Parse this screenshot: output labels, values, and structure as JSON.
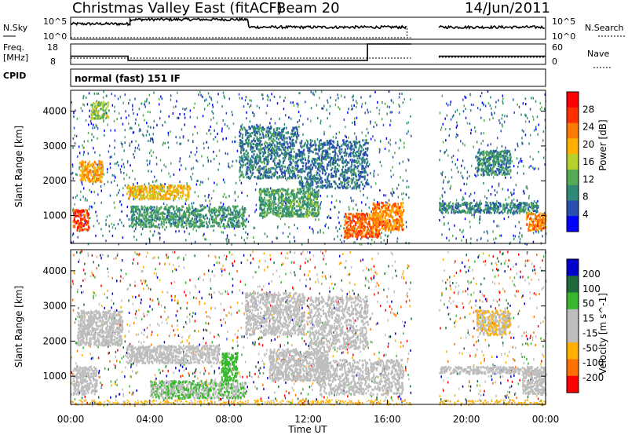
{
  "header": {
    "title": "Christmas Valley East (fitACF)",
    "beam": "Beam 20",
    "date": "14/Jun/2011"
  },
  "strips": {
    "nsky_label": "N.Sky",
    "nsky_ticks": [
      "10^5",
      "10^0"
    ],
    "nsearch_label": "N.Search",
    "nsearch_ticks": [
      "10^5",
      "10^0"
    ],
    "freq_label": "Freq.",
    "freq_unit": "[MHz]",
    "freq_ticks": [
      "18",
      "8"
    ],
    "nave_label": "Nave",
    "nave_ticks": [
      "60",
      "0"
    ],
    "cpid_label": "CPID",
    "cpid_value": "normal (fast) 151 IF"
  },
  "colors": {
    "power_scale": [
      "#0000ff",
      "#2a4fb0",
      "#2f8a78",
      "#55aa55",
      "#b8d02a",
      "#ffb000",
      "#ff7800",
      "#ff3000",
      "#ff0000"
    ],
    "velocity_scale": [
      "#0000cc",
      "#1f6a3a",
      "#37b82c",
      "#bdbdbd",
      "#bdbdbd",
      "#ffb000",
      "#ff7000",
      "#ff0000"
    ]
  },
  "chart_data": [
    {
      "type": "heatmap",
      "panel": "power",
      "ylabel": "Slant Range [km]",
      "xlabel": "",
      "y_ticks": [
        1000,
        2000,
        3000,
        4000
      ],
      "ylim": [
        200,
        4600
      ],
      "x_ticks": [
        "00:00",
        "04:00",
        "08:00",
        "12:00",
        "16:00",
        "20:00",
        "00:00"
      ],
      "xlim_hours": [
        0,
        24
      ],
      "colorbar_label": "Power [dB]",
      "colorbar_ticks": [
        "28",
        "24",
        "20",
        "16",
        "12",
        "8",
        "4"
      ],
      "colorbar_range": [
        0,
        30
      ],
      "data_gap_hours": [
        17.2,
        18.6
      ],
      "echo_regions": [
        {
          "t0": 0.1,
          "t1": 0.9,
          "r0": 600,
          "r1": 1200,
          "value": 26
        },
        {
          "t0": 0.4,
          "t1": 1.6,
          "r0": 2000,
          "r1": 2600,
          "value": 20
        },
        {
          "t0": 1.0,
          "t1": 1.9,
          "r0": 3800,
          "r1": 4300,
          "value": 14
        },
        {
          "t0": 2.8,
          "t1": 6.0,
          "r0": 1500,
          "r1": 1900,
          "value": 18
        },
        {
          "t0": 3.0,
          "t1": 8.8,
          "r0": 700,
          "r1": 1300,
          "value": 9
        },
        {
          "t0": 8.5,
          "t1": 11.5,
          "r0": 2100,
          "r1": 3600,
          "value": 7
        },
        {
          "t0": 9.5,
          "t1": 12.5,
          "r0": 1000,
          "r1": 1800,
          "value": 10
        },
        {
          "t0": 11.5,
          "t1": 15.0,
          "r0": 1800,
          "r1": 3200,
          "value": 6
        },
        {
          "t0": 13.8,
          "t1": 15.6,
          "r0": 400,
          "r1": 1100,
          "value": 24
        },
        {
          "t0": 15.2,
          "t1": 16.8,
          "r0": 600,
          "r1": 1400,
          "value": 22
        },
        {
          "t0": 18.6,
          "t1": 23.6,
          "r0": 1100,
          "r1": 1400,
          "value": 7
        },
        {
          "t0": 20.5,
          "t1": 22.2,
          "r0": 2200,
          "r1": 2900,
          "value": 8
        },
        {
          "t0": 23.0,
          "t1": 24.0,
          "r0": 600,
          "r1": 1100,
          "value": 22
        }
      ]
    },
    {
      "type": "heatmap",
      "panel": "velocity",
      "ylabel": "Slant Range [km]",
      "xlabel": "Time UT",
      "y_ticks": [
        1000,
        2000,
        3000,
        4000
      ],
      "ylim": [
        200,
        4600
      ],
      "x_ticks": [
        "00:00",
        "04:00",
        "08:00",
        "12:00",
        "16:00",
        "20:00",
        "00:00"
      ],
      "xlim_hours": [
        0,
        24
      ],
      "colorbar_label": "Velocity [m s^-1]",
      "colorbar_ticks": [
        "200",
        "100",
        "50",
        "15",
        "-15",
        "-50",
        "-100",
        "-200"
      ],
      "colorbar_range": [
        -250,
        250
      ],
      "data_gap_hours": [
        17.2,
        18.6
      ],
      "echo_regions": [
        {
          "t0": 0.1,
          "t1": 1.3,
          "r0": 500,
          "r1": 1300,
          "value": 0
        },
        {
          "t0": 0.3,
          "t1": 2.6,
          "r0": 1900,
          "r1": 2900,
          "value": 0
        },
        {
          "t0": 2.8,
          "t1": 7.5,
          "r0": 1400,
          "r1": 1900,
          "value": 0
        },
        {
          "t0": 4.0,
          "t1": 8.8,
          "r0": 400,
          "r1": 900,
          "value": 60
        },
        {
          "t0": 7.6,
          "t1": 8.4,
          "r0": 900,
          "r1": 1700,
          "value": 80
        },
        {
          "t0": 8.8,
          "t1": 11.8,
          "r0": 2200,
          "r1": 3400,
          "value": -40
        },
        {
          "t0": 10.0,
          "t1": 13.0,
          "r0": 900,
          "r1": 1800,
          "value": 0
        },
        {
          "t0": 12.0,
          "t1": 15.0,
          "r0": 1800,
          "r1": 3300,
          "value": -30
        },
        {
          "t0": 12.5,
          "t1": 16.8,
          "r0": 500,
          "r1": 1500,
          "value": 0
        },
        {
          "t0": 18.6,
          "t1": 24.0,
          "r0": 1100,
          "r1": 1300,
          "value": 0
        },
        {
          "t0": 20.5,
          "t1": 22.2,
          "r0": 2200,
          "r1": 2900,
          "value": -60
        },
        {
          "t0": 22.8,
          "t1": 24.0,
          "r0": 500,
          "r1": 1200,
          "value": 0
        }
      ]
    }
  ],
  "strip_data": {
    "nsky_level_high": [
      [
        0,
        0.7
      ],
      [
        2.9,
        0.7
      ],
      [
        3.0,
        0.9
      ],
      [
        8.8,
        0.9
      ],
      [
        9.0,
        0.55
      ],
      [
        17.0,
        0.55
      ]
    ],
    "nsky_level_high_2": [
      [
        18.6,
        0.55
      ],
      [
        24,
        0.65
      ]
    ],
    "freq_segments_mhz": [
      [
        0,
        2.9,
        12
      ],
      [
        2.9,
        15.0,
        10
      ],
      [
        15.0,
        17.2,
        18
      ]
    ],
    "freq_segment_2": [
      [
        18.6,
        24,
        12
      ]
    ]
  }
}
